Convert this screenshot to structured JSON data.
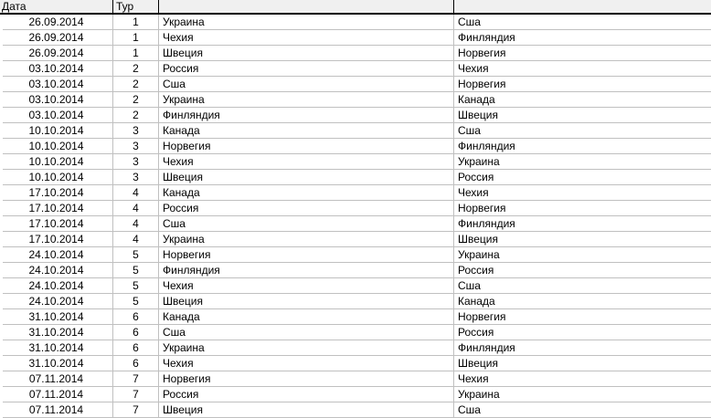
{
  "table": {
    "columns": [
      {
        "name": "date",
        "label": "Дата"
      },
      {
        "name": "round",
        "label": "Тур"
      },
      {
        "name": "home_team",
        "label": ""
      },
      {
        "name": "away_team",
        "label": ""
      }
    ],
    "rows": [
      [
        "26.09.2014",
        "1",
        "Украина",
        "Сша"
      ],
      [
        "26.09.2014",
        "1",
        "Чехия",
        "Финляндия"
      ],
      [
        "26.09.2014",
        "1",
        "Швеция",
        "Норвегия"
      ],
      [
        "03.10.2014",
        "2",
        "Россия",
        "Чехия"
      ],
      [
        "03.10.2014",
        "2",
        "Сша",
        "Норвегия"
      ],
      [
        "03.10.2014",
        "2",
        "Украина",
        "Канада"
      ],
      [
        "03.10.2014",
        "2",
        "Финляндия",
        "Швеция"
      ],
      [
        "10.10.2014",
        "3",
        "Канада",
        "Сша"
      ],
      [
        "10.10.2014",
        "3",
        "Норвегия",
        "Финляндия"
      ],
      [
        "10.10.2014",
        "3",
        "Чехия",
        "Украина"
      ],
      [
        "10.10.2014",
        "3",
        "Швеция",
        "Россия"
      ],
      [
        "17.10.2014",
        "4",
        "Канада",
        "Чехия"
      ],
      [
        "17.10.2014",
        "4",
        "Россия",
        "Норвегия"
      ],
      [
        "17.10.2014",
        "4",
        "Сша",
        "Финляндия"
      ],
      [
        "17.10.2014",
        "4",
        "Украина",
        "Швеция"
      ],
      [
        "24.10.2014",
        "5",
        "Норвегия",
        "Украина"
      ],
      [
        "24.10.2014",
        "5",
        "Финляндия",
        "Россия"
      ],
      [
        "24.10.2014",
        "5",
        "Чехия",
        "Сша"
      ],
      [
        "24.10.2014",
        "5",
        "Швеция",
        "Канада"
      ],
      [
        "31.10.2014",
        "6",
        "Канада",
        "Норвегия"
      ],
      [
        "31.10.2014",
        "6",
        "Сша",
        "Россия"
      ],
      [
        "31.10.2014",
        "6",
        "Украина",
        "Финляндия"
      ],
      [
        "31.10.2014",
        "6",
        "Чехия",
        "Швеция"
      ],
      [
        "07.11.2014",
        "7",
        "Норвегия",
        "Чехия"
      ],
      [
        "07.11.2014",
        "7",
        "Россия",
        "Украина"
      ],
      [
        "07.11.2014",
        "7",
        "Швеция",
        "Сша"
      ]
    ]
  },
  "colors": {
    "header_bg": "#f0f0f0",
    "header_border": "#000000",
    "grid_line": "#c0c0c0",
    "row_bg": "#ffffff",
    "text": "#000000"
  }
}
